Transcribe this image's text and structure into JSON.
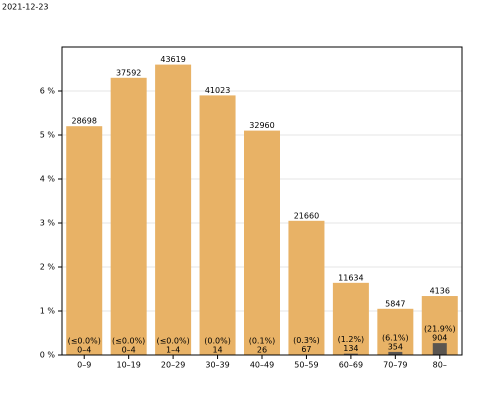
{
  "chart_data": {
    "type": "bar",
    "date": "2021-12-23",
    "categories": [
      "0–9",
      "10–19",
      "20–29",
      "30–39",
      "40–49",
      "50–59",
      "60–69",
      "70–79",
      "80–"
    ],
    "series": [
      {
        "color": "#e8b266",
        "values": [
          5.2,
          6.3,
          6.6,
          5.9,
          5.1,
          3.05,
          1.64,
          1.05,
          1.34
        ],
        "value_labels": [
          "28698",
          "37592",
          "43619",
          "41023",
          "32960",
          "21660",
          "11634",
          "5847",
          "4136"
        ]
      },
      {
        "color": "#5a5550",
        "values": [
          0,
          0,
          0,
          0,
          0.005,
          0.01,
          0.03,
          0.07,
          0.27
        ],
        "value_labels": [
          "0–4",
          "0–4",
          "1–4",
          "14",
          "26",
          "67",
          "134",
          "354",
          "904"
        ],
        "share_labels": [
          "(≤0.0%)",
          "(≤0.0%)",
          "(≤0.0%)",
          "(0.0%)",
          "(0.1%)",
          "(0.3%)",
          "(1.2%)",
          "(6.1%)",
          "(21.9%)"
        ]
      }
    ],
    "ylim": [
      0,
      7
    ],
    "yticks": [
      {
        "value": 0,
        "label": "0 %"
      },
      {
        "value": 1,
        "label": "1 %"
      },
      {
        "value": 2,
        "label": "2 %"
      },
      {
        "value": 3,
        "label": "3 %"
      },
      {
        "value": 4,
        "label": "4 %"
      },
      {
        "value": 5,
        "label": "5 %"
      },
      {
        "value": 6,
        "label": "6 %"
      }
    ],
    "grid": true
  }
}
